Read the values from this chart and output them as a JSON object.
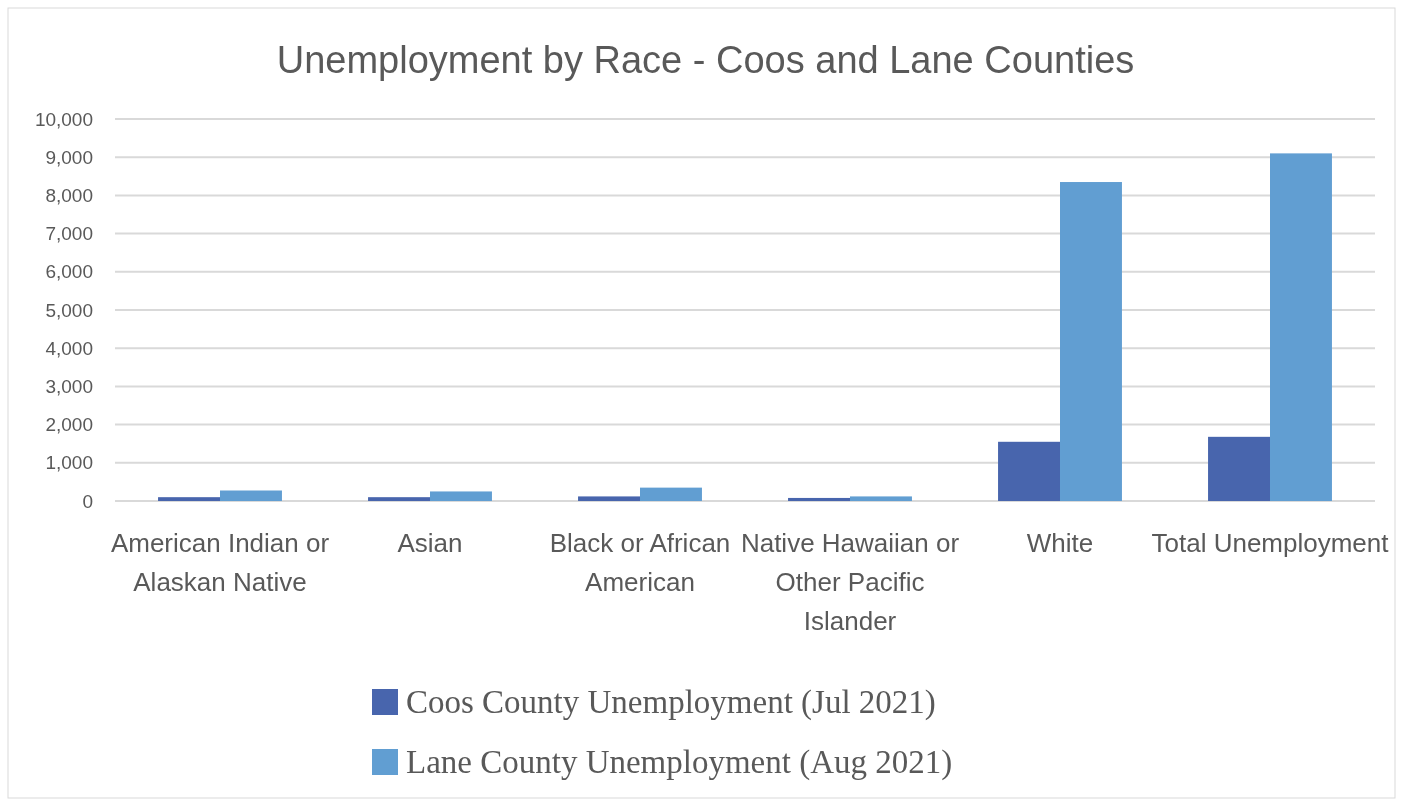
{
  "chart_data": {
    "type": "bar",
    "title": "Unemployment by Race - Coos and Lane Counties",
    "categories": [
      "American Indian or Alaskan Native",
      "Asian",
      "Black or African American",
      "Native Hawaiian or Other Pacific Islander",
      "White",
      "Total Unemployment"
    ],
    "series": [
      {
        "name": "Coos County Unemployment (Jul 2021)",
        "color": "#4865ad",
        "values": [
          100,
          100,
          120,
          80,
          1550,
          1680
        ]
      },
      {
        "name": "Lane County Unemployment (Aug 2021)",
        "color": "#619ed2",
        "values": [
          275,
          250,
          350,
          120,
          8350,
          9100
        ]
      }
    ],
    "ylim": [
      0,
      10000
    ],
    "yticks": [
      {
        "value": 0,
        "label": "0"
      },
      {
        "value": 1000,
        "label": "1,000"
      },
      {
        "value": 2000,
        "label": "2,000"
      },
      {
        "value": 3000,
        "label": "3,000"
      },
      {
        "value": 4000,
        "label": "4,000"
      },
      {
        "value": 5000,
        "label": "5,000"
      },
      {
        "value": 6000,
        "label": "6,000"
      },
      {
        "value": 7000,
        "label": "7,000"
      },
      {
        "value": 8000,
        "label": "8,000"
      },
      {
        "value": 9000,
        "label": "9,000"
      },
      {
        "value": 10000,
        "label": "10,000"
      }
    ],
    "grid": "y",
    "legend": "bottom"
  }
}
